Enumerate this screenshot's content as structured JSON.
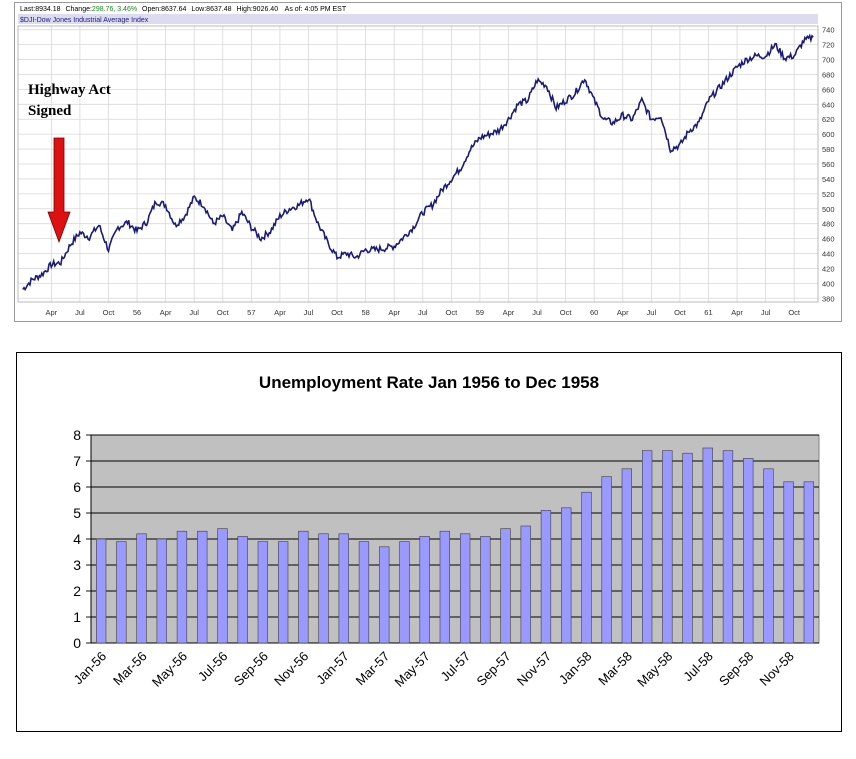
{
  "stock_header": {
    "last_label": "Last:",
    "last_value": "8934.18",
    "change_label": "Change:",
    "change_value": "298.76, 3.46%",
    "open_label": "Open:",
    "open_value": "8637.64",
    "low_label": "Low:",
    "low_value": "8637.48",
    "high_label": "High:",
    "high_value": "9026.40",
    "asof": "As of: 4:05 PM EST",
    "index_name": "$DJI-Dow Jones Industrial Average Index"
  },
  "annotation": {
    "text_line1": "Highway Act",
    "text_line2": "Signed",
    "arrow_color": "#dd1111"
  },
  "colors": {
    "dow_line": "#1a1a7a",
    "bar_fill": "#9999ff",
    "plot_bg": "#c0c0c0",
    "change_green": "#1a8a1a"
  },
  "chart_data": [
    {
      "type": "line",
      "x_tick_labels": [
        "Apr",
        "Jul",
        "Oct",
        "56",
        "Apr",
        "Jul",
        "Oct",
        "57",
        "Apr",
        "Jul",
        "Oct",
        "58",
        "Apr",
        "Jul",
        "Oct",
        "59",
        "Apr",
        "Jul",
        "Oct",
        "60",
        "Apr",
        "Jul",
        "Oct",
        "61",
        "Apr",
        "Jul",
        "Oct"
      ],
      "y_tick_labels": [
        "380",
        "400",
        "420",
        "440",
        "460",
        "480",
        "500",
        "520",
        "540",
        "560",
        "580",
        "600",
        "620",
        "640",
        "660",
        "680",
        "700",
        "720",
        "740"
      ],
      "ylim": [
        375,
        745
      ],
      "grid": true,
      "x_start": "1955-01",
      "x_end": "1961-12",
      "series": [
        {
          "values": [
            [
              "1955-01",
              392
            ],
            [
              "1955-02",
              405
            ],
            [
              "1955-03",
              412
            ],
            [
              "1955-04",
              425
            ],
            [
              "1955-05",
              428
            ],
            [
              "1955-06",
              452
            ],
            [
              "1955-07",
              468
            ],
            [
              "1955-08",
              462
            ],
            [
              "1955-09",
              478
            ],
            [
              "1955-10",
              445
            ],
            [
              "1955-11",
              475
            ],
            [
              "1955-12",
              482
            ],
            [
              "1956-01",
              470
            ],
            [
              "1956-02",
              482
            ],
            [
              "1956-03",
              510
            ],
            [
              "1956-04",
              505
            ],
            [
              "1956-05",
              478
            ],
            [
              "1956-06",
              490
            ],
            [
              "1956-07",
              515
            ],
            [
              "1956-08",
              505
            ],
            [
              "1956-09",
              480
            ],
            [
              "1956-10",
              490
            ],
            [
              "1956-11",
              470
            ],
            [
              "1956-12",
              495
            ],
            [
              "1957-01",
              475
            ],
            [
              "1957-02",
              460
            ],
            [
              "1957-03",
              470
            ],
            [
              "1957-04",
              490
            ],
            [
              "1957-05",
              500
            ],
            [
              "1957-06",
              505
            ],
            [
              "1957-07",
              515
            ],
            [
              "1957-08",
              480
            ],
            [
              "1957-09",
              455
            ],
            [
              "1957-10",
              435
            ],
            [
              "1957-11",
              440
            ],
            [
              "1957-12",
              435
            ],
            [
              "1958-01",
              445
            ],
            [
              "1958-02",
              445
            ],
            [
              "1958-03",
              447
            ],
            [
              "1958-04",
              450
            ],
            [
              "1958-05",
              462
            ],
            [
              "1958-06",
              475
            ],
            [
              "1958-07",
              495
            ],
            [
              "1958-08",
              505
            ],
            [
              "1958-09",
              525
            ],
            [
              "1958-10",
              540
            ],
            [
              "1958-11",
              555
            ],
            [
              "1958-12",
              580
            ],
            [
              "1959-01",
              595
            ],
            [
              "1959-02",
              600
            ],
            [
              "1959-03",
              605
            ],
            [
              "1959-04",
              620
            ],
            [
              "1959-05",
              640
            ],
            [
              "1959-06",
              645
            ],
            [
              "1959-07",
              672
            ],
            [
              "1959-08",
              665
            ],
            [
              "1959-09",
              635
            ],
            [
              "1959-10",
              645
            ],
            [
              "1959-11",
              655
            ],
            [
              "1959-12",
              675
            ],
            [
              "1960-01",
              645
            ],
            [
              "1960-02",
              620
            ],
            [
              "1960-03",
              615
            ],
            [
              "1960-04",
              625
            ],
            [
              "1960-05",
              620
            ],
            [
              "1960-06",
              645
            ],
            [
              "1960-07",
              620
            ],
            [
              "1960-08",
              625
            ],
            [
              "1960-09",
              580
            ],
            [
              "1960-10",
              585
            ],
            [
              "1960-11",
              605
            ],
            [
              "1960-12",
              615
            ],
            [
              "1961-01",
              645
            ],
            [
              "1961-02",
              660
            ],
            [
              "1961-03",
              675
            ],
            [
              "1961-04",
              690
            ],
            [
              "1961-05",
              700
            ],
            [
              "1961-06",
              705
            ],
            [
              "1961-07",
              705
            ],
            [
              "1961-08",
              720
            ],
            [
              "1961-09",
              702
            ],
            [
              "1961-10",
              705
            ],
            [
              "1961-11",
              725
            ],
            [
              "1961-12",
              730
            ]
          ]
        }
      ]
    },
    {
      "type": "bar",
      "title": "Unemployment Rate Jan 1956 to Dec 1958",
      "ylim": [
        0,
        8
      ],
      "y_ticks": [
        0,
        1,
        2,
        3,
        4,
        5,
        6,
        7,
        8
      ],
      "grid": true,
      "x_tick_labels": [
        "Jan-56",
        "Mar-56",
        "May-56",
        "Jul-56",
        "Sep-56",
        "Nov-56",
        "Jan-57",
        "Mar-57",
        "May-57",
        "Jul-57",
        "Sep-57",
        "Nov-57",
        "Jan-58",
        "Mar-58",
        "May-58",
        "Jul-58",
        "Sep-58",
        "Nov-58"
      ],
      "categories": [
        "Jan-56",
        "Feb-56",
        "Mar-56",
        "Apr-56",
        "May-56",
        "Jun-56",
        "Jul-56",
        "Aug-56",
        "Sep-56",
        "Oct-56",
        "Nov-56",
        "Dec-56",
        "Jan-57",
        "Feb-57",
        "Mar-57",
        "Apr-57",
        "May-57",
        "Jun-57",
        "Jul-57",
        "Aug-57",
        "Sep-57",
        "Oct-57",
        "Nov-57",
        "Dec-57",
        "Jan-58",
        "Feb-58",
        "Mar-58",
        "Apr-58",
        "May-58",
        "Jun-58",
        "Jul-58",
        "Aug-58",
        "Sep-58",
        "Oct-58",
        "Nov-58",
        "Dec-58"
      ],
      "values": [
        4.0,
        3.9,
        4.2,
        4.0,
        4.3,
        4.3,
        4.4,
        4.1,
        3.9,
        3.9,
        4.3,
        4.2,
        4.2,
        3.9,
        3.7,
        3.9,
        4.1,
        4.3,
        4.2,
        4.1,
        4.4,
        4.5,
        5.1,
        5.2,
        5.8,
        6.4,
        6.7,
        7.4,
        7.4,
        7.3,
        7.5,
        7.4,
        7.1,
        6.7,
        6.2,
        6.2
      ]
    }
  ]
}
